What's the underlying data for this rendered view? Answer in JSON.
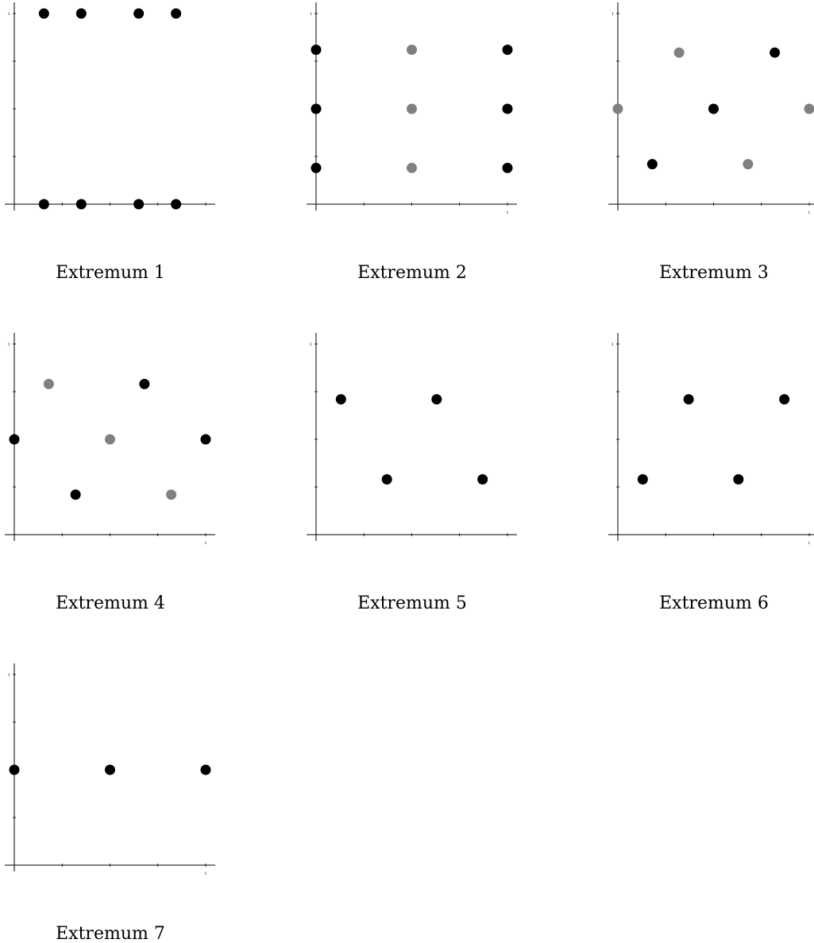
{
  "colors": {
    "black": "#000000",
    "gray": "#808080"
  },
  "chart_data": [
    {
      "type": "scatter",
      "title": "Extremum 1",
      "xlim": [
        0,
        1
      ],
      "ylim": [
        0,
        1
      ],
      "tick_labels": {
        "x": [
          "",
          "",
          "",
          ""
        ],
        "y": [
          "",
          "",
          "",
          "1"
        ]
      },
      "series": [
        {
          "color": "#000000",
          "points": [
            [
              0.155,
              1
            ],
            [
              0.35,
              1
            ],
            [
              0.65,
              1
            ],
            [
              0.845,
              1
            ],
            [
              0.155,
              0
            ],
            [
              0.35,
              0
            ],
            [
              0.65,
              0
            ],
            [
              0.845,
              0
            ]
          ]
        }
      ]
    },
    {
      "type": "scatter",
      "title": "Extremum 2",
      "xlim": [
        0,
        1
      ],
      "ylim": [
        0,
        1
      ],
      "tick_labels": {
        "x": [
          "",
          "",
          "",
          "1"
        ],
        "y": [
          "",
          "",
          "",
          "1"
        ]
      },
      "series": [
        {
          "color": "#000000",
          "points": [
            [
              0,
              0.81
            ],
            [
              0,
              0.5
            ],
            [
              0,
              0.19
            ],
            [
              1,
              0.81
            ],
            [
              1,
              0.5
            ],
            [
              1,
              0.19
            ]
          ]
        },
        {
          "color": "#808080",
          "points": [
            [
              0.5,
              0.81
            ],
            [
              0.5,
              0.5
            ],
            [
              0.5,
              0.19
            ]
          ]
        }
      ]
    },
    {
      "type": "scatter",
      "title": "Extremum 3",
      "xlim": [
        0,
        1
      ],
      "ylim": [
        0,
        1
      ],
      "tick_labels": {
        "x": [
          "",
          "",
          "",
          "1"
        ],
        "y": [
          "",
          "",
          "",
          "1"
        ]
      },
      "series": [
        {
          "color": "#000000",
          "points": [
            [
              0.5,
              0.5
            ],
            [
              0.18,
              0.21
            ],
            [
              0.82,
              0.795
            ]
          ]
        },
        {
          "color": "#808080",
          "points": [
            [
              0,
              0.5
            ],
            [
              1,
              0.5
            ],
            [
              0.32,
              0.795
            ],
            [
              0.68,
              0.21
            ]
          ]
        }
      ]
    },
    {
      "type": "scatter",
      "title": "Extremum 4",
      "xlim": [
        0,
        1
      ],
      "ylim": [
        0,
        1
      ],
      "tick_labels": {
        "x": [
          "",
          "",
          "",
          "1"
        ],
        "y": [
          "",
          "",
          "",
          "1"
        ]
      },
      "series": [
        {
          "color": "#000000",
          "points": [
            [
              0,
              0.5
            ],
            [
              1,
              0.5
            ],
            [
              0.68,
              0.79
            ],
            [
              0.32,
              0.21
            ]
          ]
        },
        {
          "color": "#808080",
          "points": [
            [
              0.5,
              0.5
            ],
            [
              0.18,
              0.79
            ],
            [
              0.82,
              0.21
            ]
          ]
        }
      ]
    },
    {
      "type": "scatter",
      "title": "Extremum 5",
      "xlim": [
        0,
        1
      ],
      "ylim": [
        0,
        1
      ],
      "tick_labels": {
        "x": [
          "",
          "",
          "",
          ""
        ],
        "y": [
          "",
          "",
          "",
          "1"
        ]
      },
      "series": [
        {
          "color": "#000000",
          "points": [
            [
              0.13,
              0.71
            ],
            [
              0.63,
              0.71
            ],
            [
              0.37,
              0.29
            ],
            [
              0.87,
              0.29
            ]
          ]
        }
      ]
    },
    {
      "type": "scatter",
      "title": "Extremum 6",
      "xlim": [
        0,
        1
      ],
      "ylim": [
        0,
        1
      ],
      "tick_labels": {
        "x": [
          "",
          "",
          "",
          "1"
        ],
        "y": [
          "",
          "",
          "",
          "1"
        ]
      },
      "series": [
        {
          "color": "#000000",
          "points": [
            [
              0.13,
              0.29
            ],
            [
              0.63,
              0.29
            ],
            [
              0.37,
              0.71
            ],
            [
              0.87,
              0.71
            ]
          ]
        }
      ]
    },
    {
      "type": "scatter",
      "title": "Extremum 7",
      "xlim": [
        0,
        1
      ],
      "ylim": [
        0,
        1
      ],
      "tick_labels": {
        "x": [
          "",
          "",
          "",
          "1"
        ],
        "y": [
          "",
          "",
          "",
          "1"
        ]
      },
      "series": [
        {
          "color": "#000000",
          "points": [
            [
              0,
              0.5
            ],
            [
              0.5,
              0.5
            ],
            [
              1,
              0.5
            ]
          ]
        }
      ]
    }
  ]
}
